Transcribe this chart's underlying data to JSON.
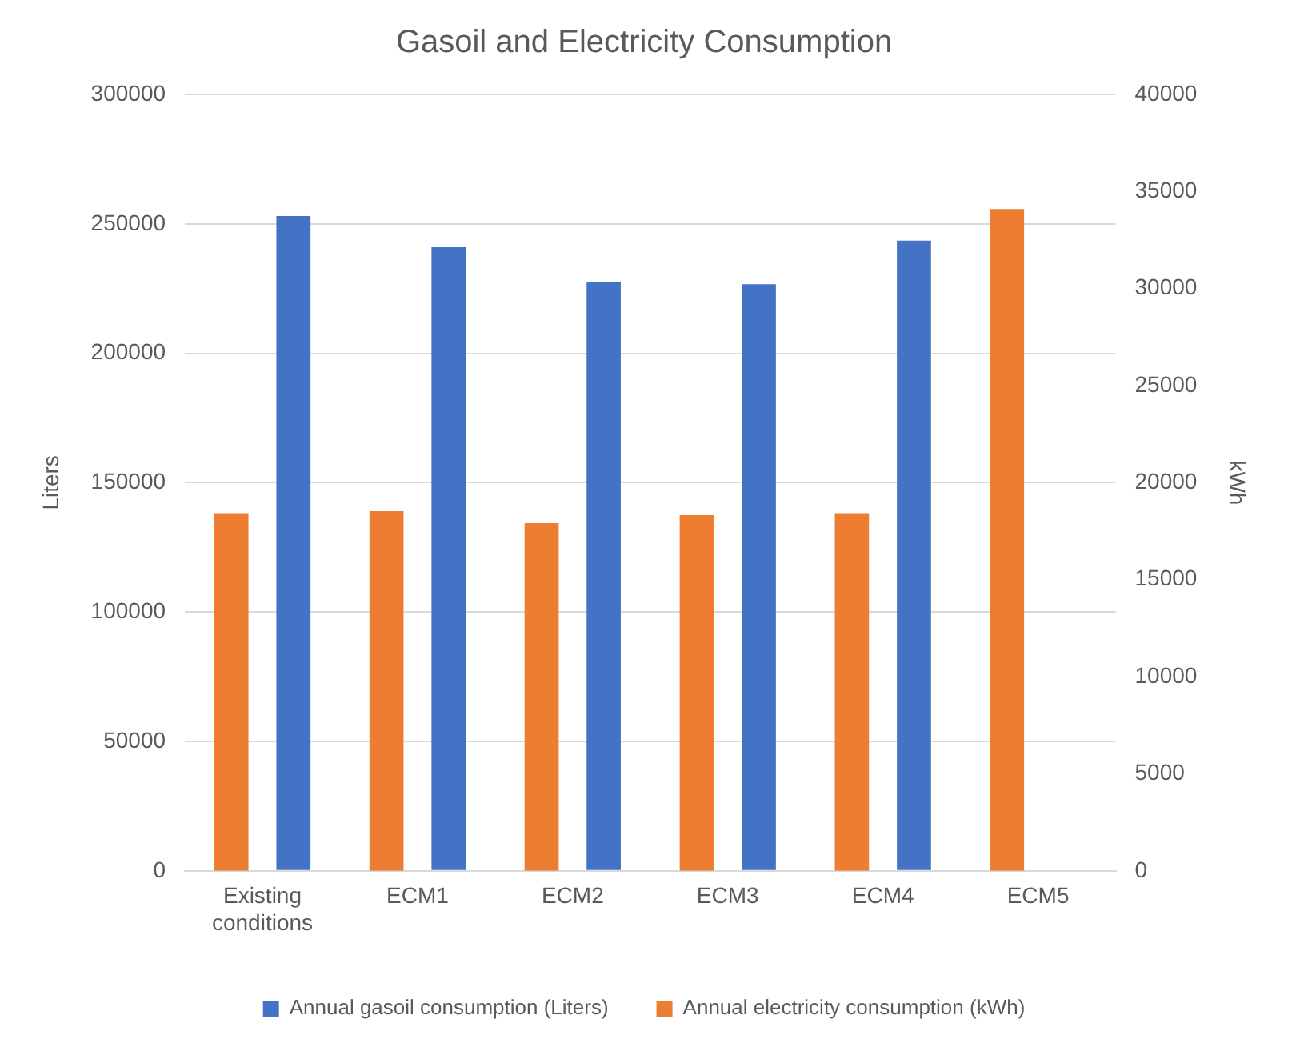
{
  "chart_data": {
    "type": "bar",
    "title": "Gasoil and Electricity Consumption",
    "ylabel": "Liters",
    "y2label": "kWh",
    "categories": [
      "Existing conditions",
      "ECM1",
      "ECM2",
      "ECM3",
      "ECM4",
      "ECM5"
    ],
    "series": [
      {
        "name": "Annual gasoil consumption (Liters)",
        "color": "#4472c4",
        "values": [
          253000,
          241000,
          227600,
          226700,
          243500,
          null
        ]
      },
      {
        "name": "Annual electricity consumption (kWh)",
        "color": "#ed7d31",
        "axis": "y2",
        "values": [
          18430,
          18530,
          17920,
          18330,
          18430,
          34100
        ]
      }
    ],
    "ylim": [
      0,
      300000
    ],
    "yticks": [
      0,
      50000,
      100000,
      150000,
      200000,
      250000,
      300000
    ],
    "y2lim": [
      0,
      40000
    ],
    "y2ticks": [
      0,
      5000,
      10000,
      15000,
      20000,
      25000,
      30000,
      35000,
      40000
    ],
    "grid": "y",
    "legend": "bottom"
  }
}
